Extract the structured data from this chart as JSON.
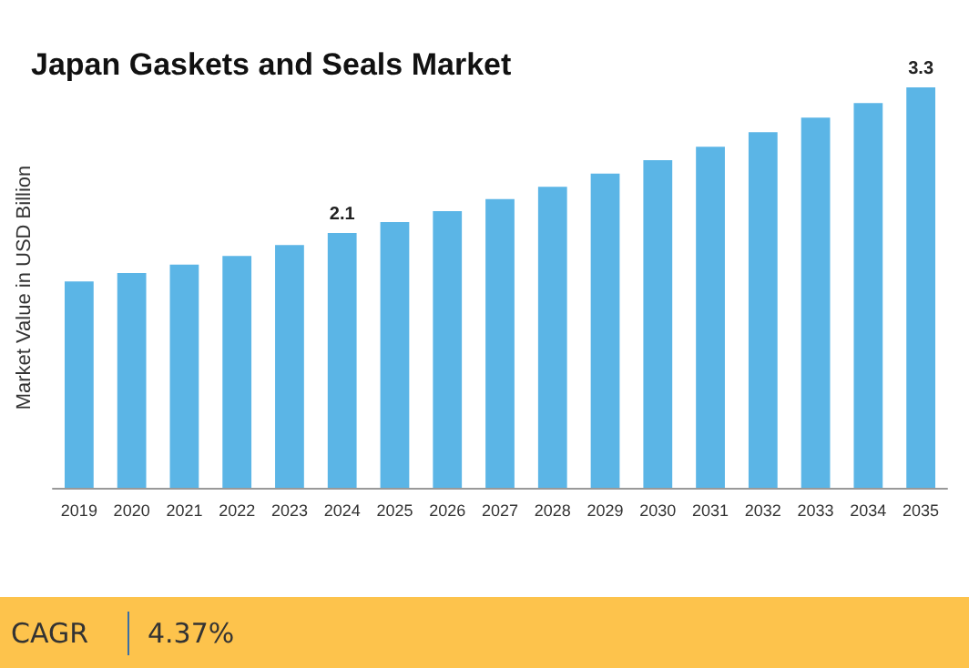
{
  "chart_data": {
    "type": "bar",
    "title": "Japan Gaskets and Seals Market",
    "ylabel": "Market Value in USD Billion",
    "categories": [
      "2019",
      "2020",
      "2021",
      "2022",
      "2023",
      "2024",
      "2025",
      "2026",
      "2027",
      "2028",
      "2029",
      "2030",
      "2031",
      "2032",
      "2033",
      "2034",
      "2035"
    ],
    "values": [
      1.7,
      1.77,
      1.84,
      1.91,
      2.0,
      2.1,
      2.19,
      2.28,
      2.38,
      2.48,
      2.59,
      2.7,
      2.81,
      2.93,
      3.05,
      3.17,
      3.3
    ],
    "value_labels": [
      null,
      null,
      null,
      null,
      null,
      "2.1",
      null,
      null,
      null,
      null,
      null,
      null,
      null,
      null,
      null,
      null,
      "3.3"
    ],
    "color": "#5bb5e6",
    "annotations": [
      "CAGR",
      "4.37%"
    ]
  }
}
